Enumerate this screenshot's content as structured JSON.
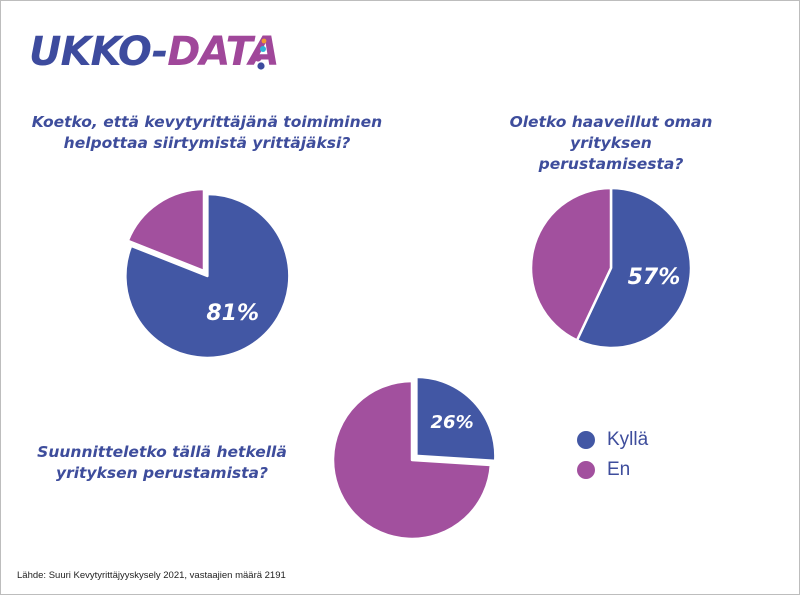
{
  "logo": {
    "part1": "UKKO-",
    "part2": "DATA"
  },
  "colors": {
    "yes": "#4257a4",
    "no": "#a2509e",
    "text": "#3e4d9c"
  },
  "legend": [
    {
      "label": "Kyllä",
      "color": "#4257a4"
    },
    {
      "label": "En",
      "color": "#a2509e"
    }
  ],
  "chart_data": [
    {
      "type": "pie",
      "title": "Koetko, että kevytyrittäjänä toimiminen helpottaa siirtymistä yrittäjäksi?",
      "slices": [
        {
          "name": "Kyllä",
          "value": 81,
          "label": "81%"
        },
        {
          "name": "En",
          "value": 19
        }
      ]
    },
    {
      "type": "pie",
      "title": "Oletko haaveillut oman yrityksen perustamisesta?",
      "slices": [
        {
          "name": "Kyllä",
          "value": 57,
          "label": "57%"
        },
        {
          "name": "En",
          "value": 43
        }
      ]
    },
    {
      "type": "pie",
      "title": "Suunnitteletko tällä hetkellä yrityksen perustamista?",
      "slices": [
        {
          "name": "Kyllä",
          "value": 26,
          "label": "26%"
        },
        {
          "name": "En",
          "value": 74
        }
      ]
    }
  ],
  "source": "Lähde: Suuri Kevytyrittäjyyskysely 2021, vastaajien määrä 2191"
}
